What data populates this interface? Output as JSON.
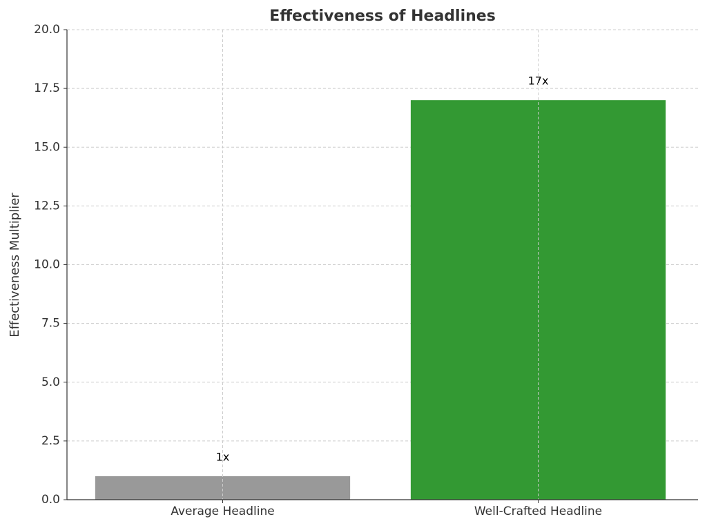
{
  "chart_data": {
    "type": "bar",
    "title": "Effectiveness of Headlines",
    "ylabel": "Effectiveness Multiplier",
    "categories": [
      "Average Headline",
      "Well-Crafted Headline"
    ],
    "values": [
      1,
      17
    ],
    "value_labels": [
      "1x",
      "17x"
    ],
    "colors": [
      "#999999",
      "#339933"
    ],
    "ylim": [
      0,
      20
    ],
    "yticks": [
      {
        "value": 0,
        "label": "0.0"
      },
      {
        "value": 2.5,
        "label": "2.5"
      },
      {
        "value": 5,
        "label": "5.0"
      },
      {
        "value": 7.5,
        "label": "7.5"
      },
      {
        "value": 10,
        "label": "10.0"
      },
      {
        "value": 12.5,
        "label": "12.5"
      },
      {
        "value": 15,
        "label": "15.0"
      },
      {
        "value": 17.5,
        "label": "17.5"
      },
      {
        "value": 20,
        "label": "20.0"
      }
    ],
    "grid": true
  }
}
